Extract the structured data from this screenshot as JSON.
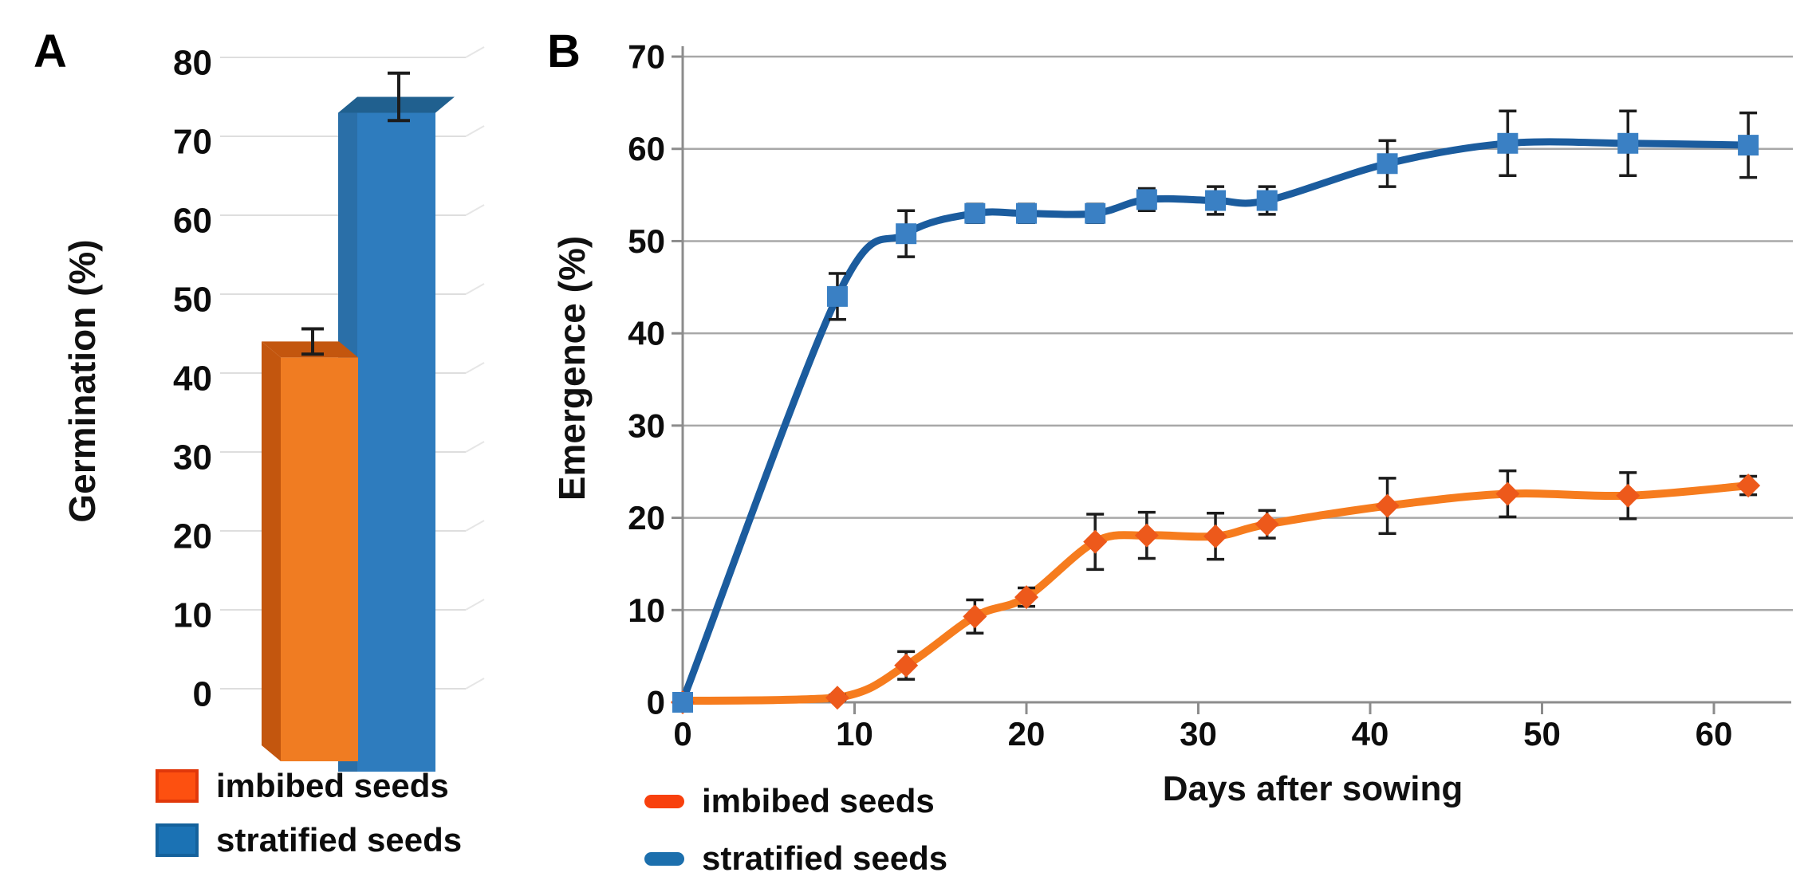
{
  "panels": {
    "a": {
      "letter": "A"
    },
    "b": {
      "letter": "B"
    }
  },
  "chart_data": [
    {
      "type": "bar",
      "panel": "A",
      "style": "3d",
      "ylabel": "Germination (%)",
      "categories": [
        "imbibed seeds",
        "stratified seeds"
      ],
      "values": [
        44,
        75
      ],
      "errors": [
        1.6,
        3
      ],
      "ylim": [
        0,
        80
      ],
      "yticks": [
        0,
        10,
        20,
        30,
        40,
        50,
        60,
        70,
        80
      ],
      "grid": true,
      "legend_position": "bottom-left",
      "bar_colors": [
        "#F07C22",
        "#2E7CBE"
      ],
      "bar_dark_colors": [
        "#C3560E",
        "#20608F"
      ],
      "legend": [
        {
          "label": "imbibed seeds",
          "fill": "#FD5010",
          "border": "#E1380A"
        },
        {
          "label": "stratified seeds",
          "fill": "#1B72B4",
          "border": "#14619C"
        }
      ]
    },
    {
      "type": "line",
      "panel": "B",
      "xlabel": "Days after sowing",
      "ylabel": "Emergence (%)",
      "x": [
        0,
        9,
        13,
        17,
        20,
        24,
        27,
        31,
        34,
        41,
        48,
        55,
        62
      ],
      "series": [
        {
          "name": "imbibed seeds",
          "color": "#F67C1E",
          "marker": "diamond",
          "marker_color": "#ED591B",
          "values": [
            0,
            0.5,
            4,
            9.3,
            11.4,
            17.4,
            18.1,
            18,
            19.3,
            21.3,
            22.6,
            22.4,
            23.5
          ],
          "errors": [
            0,
            0.3,
            1.5,
            1.8,
            1,
            3,
            2.5,
            2.5,
            1.5,
            3,
            2.5,
            2.5,
            1
          ]
        },
        {
          "name": "stratified seeds",
          "color": "#1B5C9E",
          "marker": "square",
          "marker_color": "#3A80C4",
          "values": [
            0,
            44,
            50.8,
            53,
            53,
            53,
            54.5,
            54.4,
            54.4,
            58.4,
            60.6,
            60.6,
            60.4
          ],
          "errors": [
            0.5,
            2.5,
            2.5,
            1,
            1,
            1,
            1.2,
            1.5,
            1.5,
            2.5,
            3.5,
            3.5,
            3.5
          ]
        }
      ],
      "xlim": [
        0,
        65
      ],
      "ylim": [
        0,
        70
      ],
      "xticks": [
        0,
        10,
        20,
        30,
        40,
        50,
        60
      ],
      "yticks": [
        0,
        10,
        20,
        30,
        40,
        50,
        60,
        70
      ],
      "grid": true,
      "legend_position": "bottom-left",
      "legend": [
        {
          "label": "imbibed seeds",
          "fill": "#F8400D"
        },
        {
          "label": "stratified seeds",
          "fill": "#1C6FAD"
        }
      ]
    }
  ]
}
